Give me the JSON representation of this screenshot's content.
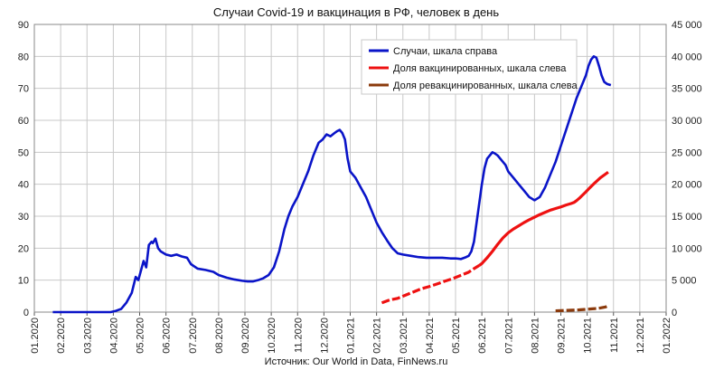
{
  "chart_data": {
    "type": "line",
    "title": "Случаи Covid-19 и вакцинация в РФ, человек в день",
    "source": "Источник: Our World in Data, FinNews.ru",
    "xlabel": "",
    "ylabel_left": "",
    "ylabel_right": "",
    "x_ticks": [
      "01.2020",
      "02.2020",
      "03.2020",
      "04.2020",
      "05.2020",
      "06.2020",
      "07.2020",
      "08.2020",
      "09.2020",
      "10.2020",
      "11.2020",
      "12.2020",
      "01.2021",
      "02.2021",
      "03.2021",
      "04.2021",
      "05.2021",
      "06.2021",
      "07.2021",
      "08.2021",
      "09.2021",
      "10.2021",
      "11.2021",
      "12.2021",
      "01.2022"
    ],
    "y_left_ticks": [
      "0",
      "10",
      "20",
      "30",
      "40",
      "50",
      "60",
      "70",
      "80",
      "90"
    ],
    "y_right_ticks": [
      "0",
      "5 000",
      "10 000",
      "15 000",
      "20 000",
      "25 000",
      "30 000",
      "35 000",
      "40 000",
      "45 000"
    ],
    "ylim_left": [
      0,
      90
    ],
    "ylim_right": [
      0,
      45000
    ],
    "grid": true,
    "legend_position": "top-right",
    "series": [
      {
        "name": "Случаи, шкала справа",
        "axis": "right",
        "color": "#0a14c8",
        "style": "solid",
        "points": [
          [
            0.7,
            0
          ],
          [
            1.0,
            0
          ],
          [
            2.0,
            0
          ],
          [
            2.9,
            0
          ],
          [
            3.1,
            200
          ],
          [
            3.3,
            500
          ],
          [
            3.5,
            1500
          ],
          [
            3.7,
            3000
          ],
          [
            3.85,
            5500
          ],
          [
            3.95,
            5000
          ],
          [
            4.05,
            6500
          ],
          [
            4.15,
            8000
          ],
          [
            4.25,
            7000
          ],
          [
            4.35,
            10500
          ],
          [
            4.45,
            11000
          ],
          [
            4.5,
            10800
          ],
          [
            4.6,
            11500
          ],
          [
            4.7,
            10000
          ],
          [
            4.8,
            9500
          ],
          [
            5.0,
            9000
          ],
          [
            5.2,
            8800
          ],
          [
            5.4,
            9000
          ],
          [
            5.6,
            8700
          ],
          [
            5.8,
            8500
          ],
          [
            5.95,
            7500
          ],
          [
            6.2,
            6800
          ],
          [
            6.5,
            6600
          ],
          [
            6.8,
            6300
          ],
          [
            7.0,
            5800
          ],
          [
            7.3,
            5400
          ],
          [
            7.6,
            5100
          ],
          [
            7.9,
            4900
          ],
          [
            8.1,
            4800
          ],
          [
            8.3,
            4800
          ],
          [
            8.5,
            5000
          ],
          [
            8.7,
            5300
          ],
          [
            8.9,
            5800
          ],
          [
            9.1,
            7000
          ],
          [
            9.3,
            9500
          ],
          [
            9.5,
            13000
          ],
          [
            9.65,
            15000
          ],
          [
            9.8,
            16500
          ],
          [
            10.0,
            18000
          ],
          [
            10.2,
            20000
          ],
          [
            10.4,
            22000
          ],
          [
            10.6,
            24500
          ],
          [
            10.8,
            26500
          ],
          [
            10.95,
            27000
          ],
          [
            11.1,
            27800
          ],
          [
            11.25,
            27500
          ],
          [
            11.4,
            28000
          ],
          [
            11.5,
            28300
          ],
          [
            11.6,
            28500
          ],
          [
            11.7,
            28000
          ],
          [
            11.8,
            27000
          ],
          [
            11.9,
            24000
          ],
          [
            12.0,
            22000
          ],
          [
            12.2,
            21000
          ],
          [
            12.4,
            19500
          ],
          [
            12.6,
            18000
          ],
          [
            12.8,
            16000
          ],
          [
            13.0,
            14000
          ],
          [
            13.2,
            12500
          ],
          [
            13.4,
            11200
          ],
          [
            13.6,
            10000
          ],
          [
            13.8,
            9200
          ],
          [
            14.0,
            9000
          ],
          [
            14.3,
            8800
          ],
          [
            14.6,
            8600
          ],
          [
            14.9,
            8500
          ],
          [
            15.2,
            8500
          ],
          [
            15.5,
            8500
          ],
          [
            15.8,
            8400
          ],
          [
            16.0,
            8400
          ],
          [
            16.2,
            8300
          ],
          [
            16.4,
            8600
          ],
          [
            16.5,
            8800
          ],
          [
            16.6,
            9500
          ],
          [
            16.7,
            11000
          ],
          [
            16.8,
            14000
          ],
          [
            16.9,
            17000
          ],
          [
            17.0,
            20000
          ],
          [
            17.1,
            22500
          ],
          [
            17.2,
            24000
          ],
          [
            17.3,
            24500
          ],
          [
            17.4,
            25000
          ],
          [
            17.5,
            24800
          ],
          [
            17.6,
            24500
          ],
          [
            17.7,
            24000
          ],
          [
            17.8,
            23500
          ],
          [
            17.9,
            23000
          ],
          [
            18.0,
            22000
          ],
          [
            18.2,
            21000
          ],
          [
            18.4,
            20000
          ],
          [
            18.6,
            19000
          ],
          [
            18.8,
            18000
          ],
          [
            19.0,
            17500
          ],
          [
            19.2,
            18000
          ],
          [
            19.4,
            19500
          ],
          [
            19.6,
            21500
          ],
          [
            19.8,
            23500
          ],
          [
            20.0,
            26000
          ],
          [
            20.2,
            28500
          ],
          [
            20.4,
            31000
          ],
          [
            20.6,
            33500
          ],
          [
            20.8,
            35500
          ],
          [
            20.95,
            37000
          ],
          [
            21.05,
            38500
          ],
          [
            21.15,
            39500
          ],
          [
            21.25,
            40000
          ],
          [
            21.35,
            39800
          ],
          [
            21.45,
            38500
          ],
          [
            21.55,
            37000
          ],
          [
            21.65,
            36000
          ],
          [
            21.75,
            35700
          ],
          [
            21.9,
            35500
          ]
        ]
      },
      {
        "name": "Доля вакцинированных, шкала слева",
        "axis": "left",
        "color": "#ee1111",
        "style": "dashed-then-solid",
        "points": [
          [
            13.2,
            2.9
          ],
          [
            13.5,
            3.8
          ],
          [
            13.8,
            4.3
          ],
          [
            14.1,
            5.3
          ],
          [
            14.4,
            6.3
          ],
          [
            14.7,
            7.3
          ],
          [
            15.0,
            8.0
          ],
          [
            15.3,
            8.8
          ],
          [
            15.6,
            9.7
          ],
          [
            15.9,
            10.5
          ],
          [
            16.2,
            11.5
          ],
          [
            16.5,
            12.5
          ],
          [
            16.7,
            13.6
          ],
          [
            16.9,
            14.6
          ],
          [
            17.0,
            15.2
          ],
          [
            17.2,
            17.0
          ],
          [
            17.4,
            19.0
          ],
          [
            17.6,
            21.2
          ],
          [
            17.8,
            23.2
          ],
          [
            18.0,
            24.8
          ],
          [
            18.2,
            26.0
          ],
          [
            18.4,
            27.0
          ],
          [
            18.6,
            28.0
          ],
          [
            18.8,
            28.9
          ],
          [
            19.0,
            29.7
          ],
          [
            19.2,
            30.5
          ],
          [
            19.4,
            31.2
          ],
          [
            19.6,
            31.9
          ],
          [
            19.8,
            32.4
          ],
          [
            20.0,
            32.9
          ],
          [
            20.2,
            33.5
          ],
          [
            20.4,
            34.0
          ],
          [
            20.5,
            34.3
          ],
          [
            20.6,
            34.9
          ],
          [
            20.7,
            35.6
          ],
          [
            20.8,
            36.4
          ],
          [
            20.95,
            37.6
          ],
          [
            21.1,
            38.9
          ],
          [
            21.3,
            40.5
          ],
          [
            21.5,
            42.0
          ],
          [
            21.7,
            43.2
          ],
          [
            21.8,
            43.8
          ]
        ]
      },
      {
        "name": "Доля ревакцинированных, шкала слева",
        "axis": "left",
        "color": "#8b3a0c",
        "style": "dashed",
        "points": [
          [
            19.8,
            0.4
          ],
          [
            20.1,
            0.5
          ],
          [
            20.4,
            0.6
          ],
          [
            20.7,
            0.7
          ],
          [
            21.0,
            0.9
          ],
          [
            21.3,
            1.1
          ],
          [
            21.5,
            1.3
          ],
          [
            21.7,
            1.6
          ],
          [
            21.8,
            2.0
          ]
        ]
      }
    ]
  }
}
